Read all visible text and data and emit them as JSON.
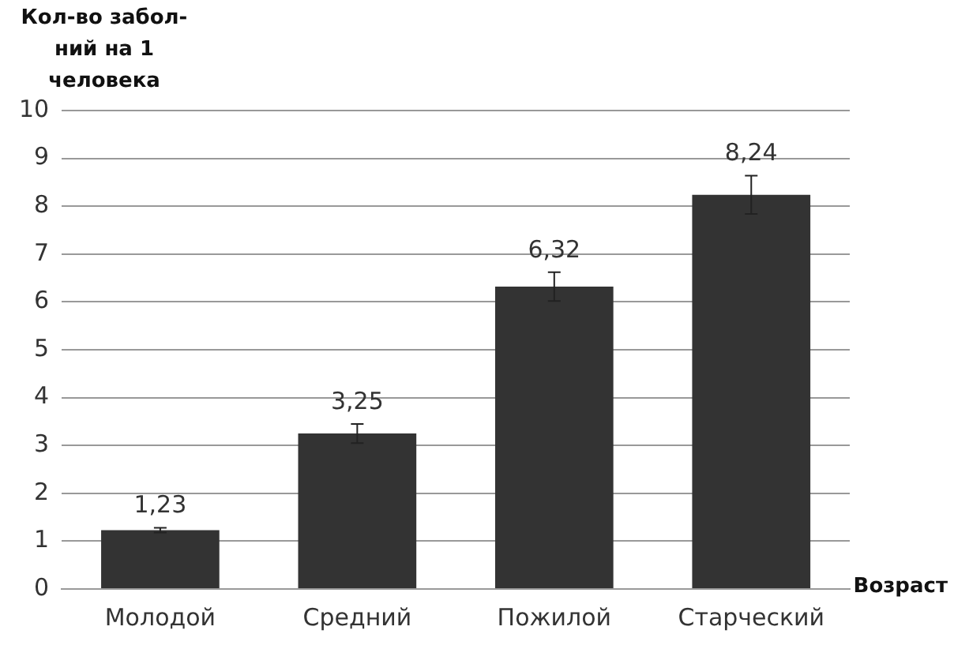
{
  "chart_data": {
    "type": "bar",
    "ylabel": "Кол-во забол-ний на 1 человека",
    "xlabel": "Возраст",
    "categories": [
      "Молодой",
      "Средний",
      "Пожилой",
      "Старческий"
    ],
    "values": [
      1.23,
      3.25,
      6.32,
      8.24
    ],
    "errors": [
      0.05,
      0.2,
      0.3,
      0.4
    ],
    "value_labels": [
      "1,23",
      "3,25",
      "6,32",
      "8,24"
    ],
    "color": "#333333",
    "ylim": [
      0,
      10
    ],
    "yticks": [
      0,
      1,
      2,
      3,
      4,
      5,
      6,
      7,
      8,
      9,
      10
    ],
    "grid": "y",
    "legend": false
  }
}
